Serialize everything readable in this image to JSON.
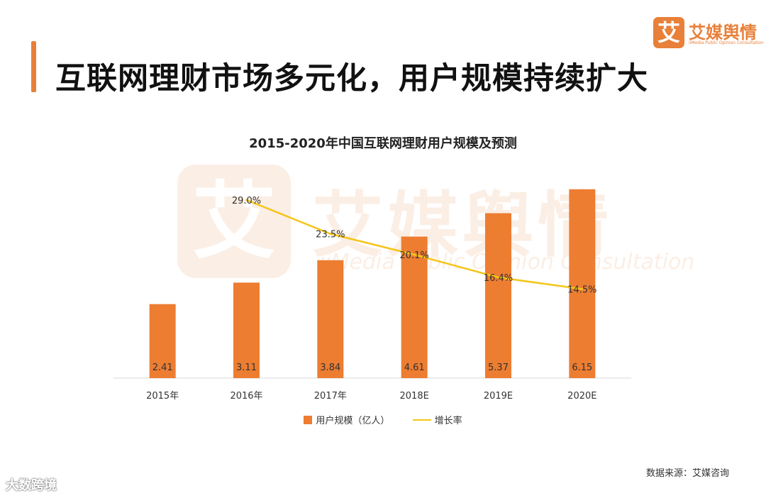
{
  "header": {
    "title": "互联网理财市场多元化，用户规模持续扩大",
    "brand_logo_char": "艾",
    "brand_name": "艾媒舆情",
    "brand_subtitle": "iiMedia Public Opinion Consultation"
  },
  "watermark": {
    "logo_char": "艾",
    "name": "艾媒舆情",
    "subtitle": "iiMedia Public Opinion Consultation"
  },
  "colors": {
    "accent": "#e8803a",
    "bar": "#ed7d31",
    "line": "#f5c518"
  },
  "chart_data": {
    "type": "bar",
    "title": "2015-2020年中国互联网理财用户规模及预测",
    "categories": [
      "2015年",
      "2016年",
      "2017年",
      "2018E",
      "2019E",
      "2020E"
    ],
    "series": [
      {
        "name": "用户规模（亿人）",
        "type": "bar",
        "values": [
          2.41,
          3.11,
          3.84,
          4.61,
          5.37,
          6.15
        ],
        "labels": [
          "2.41",
          "3.11",
          "3.84",
          "4.61",
          "5.37",
          "6.15"
        ]
      },
      {
        "name": "增长率",
        "type": "line",
        "values": [
          null,
          29.0,
          23.5,
          20.1,
          16.4,
          14.5
        ],
        "labels": [
          "",
          "29.0%",
          "23.5%",
          "20.1%",
          "16.4%",
          "14.5%"
        ]
      }
    ],
    "ylim_bar": [
      0,
      7
    ],
    "ylim_line": [
      0,
      35
    ],
    "xlabel": "",
    "ylabel": "",
    "grid": false,
    "legend": "bottom"
  },
  "legend": {
    "bar_label": "用户规模（亿人）",
    "line_label": "增长率"
  },
  "footer": {
    "source": "数据来源：艾媒咨询",
    "corner_mark": "大数跨境"
  }
}
